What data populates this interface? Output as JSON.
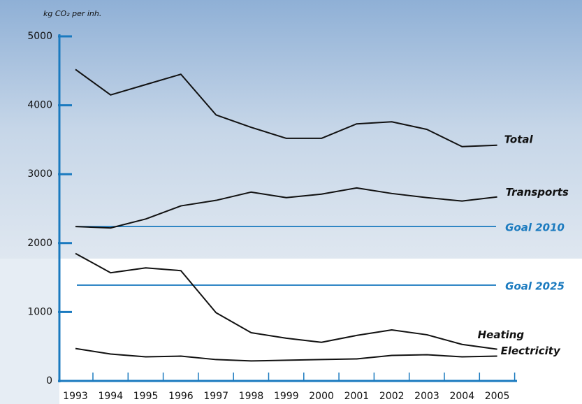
{
  "chart_data": {
    "type": "line",
    "y_axis_label": "kg CO₂ per inh.",
    "x": [
      "1993",
      "1994",
      "1995",
      "1996",
      "1997",
      "1998",
      "1999",
      "2000",
      "2001",
      "2002",
      "2003",
      "2004",
      "2005"
    ],
    "series": [
      {
        "name": "Total",
        "color": "#111111",
        "values": [
          4520,
          4150,
          4300,
          4450,
          3860,
          3680,
          3520,
          3520,
          3730,
          3760,
          3650,
          3400,
          3420
        ]
      },
      {
        "name": "Transports",
        "color": "#111111",
        "values": [
          2240,
          2220,
          2350,
          2540,
          2620,
          2740,
          2660,
          2710,
          2800,
          2720,
          2660,
          2610,
          2670
        ]
      },
      {
        "name": "Heating",
        "color": "#111111",
        "values": [
          1850,
          1570,
          1640,
          1600,
          990,
          700,
          620,
          560,
          660,
          740,
          670,
          530,
          460
        ]
      },
      {
        "name": "Electricity",
        "color": "#111111",
        "values": [
          470,
          390,
          350,
          360,
          310,
          290,
          300,
          310,
          320,
          370,
          380,
          350,
          360
        ]
      }
    ],
    "goals": [
      {
        "name": "Goal 2010",
        "value": 2240,
        "color": "#1a7abf"
      },
      {
        "name": "Goal 2025",
        "value": 1390,
        "color": "#1a7abf"
      }
    ],
    "axis_color": "#1a7abf",
    "ylim": [
      0,
      5000
    ],
    "yticks": [
      0,
      1000,
      2000,
      3000,
      4000,
      5000
    ]
  }
}
